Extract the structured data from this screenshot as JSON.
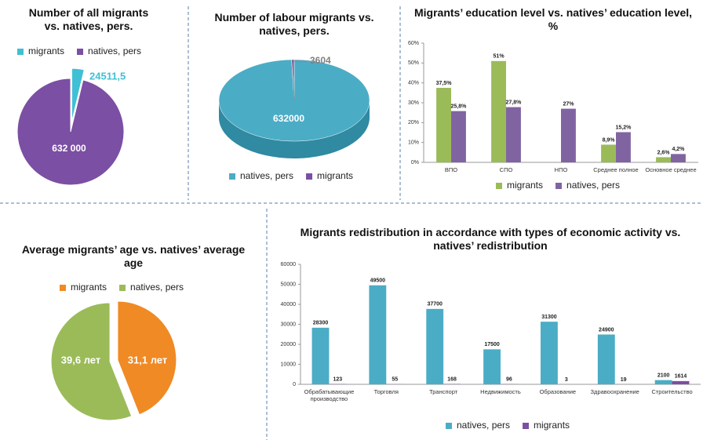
{
  "chart_data": [
    {
      "type": "pie",
      "title": "Number of all migrants vs. natives, pers.",
      "labels": [
        "migrants",
        "natives, pers"
      ],
      "values": [
        24511.5,
        632000
      ],
      "value_labels": [
        "24511,5",
        "632 000"
      ],
      "colors": [
        "#3fc0d4",
        "#7b4fa3"
      ]
    },
    {
      "type": "pie3d",
      "title": "Number of labour migrants vs. natives, pers.",
      "labels": [
        "natives, pers",
        "migrants"
      ],
      "values": [
        632000,
        3604
      ],
      "value_labels": [
        "632000",
        "3604"
      ],
      "colors": [
        "#4bacc6",
        "#7b4fa3"
      ]
    },
    {
      "type": "bar",
      "title": "Migrants’ education level vs. natives’ education level, %",
      "categories": [
        "ВПО",
        "СПО",
        "НПО",
        "Среднее полное",
        "Основное среднее"
      ],
      "series": [
        {
          "name": "migrants",
          "color": "#9bbb59",
          "values": [
            37.5,
            51,
            null,
            8.9,
            2.6
          ],
          "value_labels": [
            "37,5%",
            "51%",
            null,
            "8,9%",
            "2,6%"
          ]
        },
        {
          "name": "natives, pers",
          "color": "#8064a2",
          "values": [
            25.8,
            27.8,
            27,
            15.2,
            4.2
          ],
          "value_labels": [
            "25,8%",
            "27,8%",
            "27%",
            "15,2%",
            "4,2%"
          ]
        }
      ],
      "ylim": [
        0,
        60
      ],
      "yticks": [
        {
          "value": 0,
          "label": "0%"
        },
        {
          "value": 10,
          "label": "10%"
        },
        {
          "value": 20,
          "label": "20%"
        },
        {
          "value": 30,
          "label": "30%"
        },
        {
          "value": 40,
          "label": "40%"
        },
        {
          "value": 50,
          "label": "50%"
        },
        {
          "value": 60,
          "label": "60%"
        }
      ],
      "grid": false
    },
    {
      "type": "pie",
      "title": "Average migrants’ age vs. natives’ average age",
      "labels": [
        "migrants",
        "natives, pers"
      ],
      "values": [
        31.1,
        39.6
      ],
      "value_labels": [
        "31,1 лет",
        "39,6 лет"
      ],
      "colors": [
        "#f08a24",
        "#9bbb59"
      ]
    },
    {
      "type": "bar",
      "title": "Migrants redistribution in accordance with types of economic activity vs. natives’ redistribution",
      "categories": [
        "Обрабатывающие производство",
        "Торговля",
        "Транспорт",
        "Недвижимость",
        "Образование",
        "Здравоохранение",
        "Строительство"
      ],
      "series": [
        {
          "name": "natives, pers",
          "color": "#4bacc6",
          "values": [
            28300,
            49500,
            37700,
            17500,
            31300,
            24900,
            2100
          ]
        },
        {
          "name": "migrants",
          "color": "#7b4fa3",
          "values": [
            123,
            55,
            168,
            96,
            3,
            19,
            1614
          ]
        }
      ],
      "ylim": [
        0,
        60000
      ],
      "yticks": [
        0,
        10000,
        20000,
        30000,
        40000,
        50000,
        60000
      ],
      "grid": false
    }
  ]
}
